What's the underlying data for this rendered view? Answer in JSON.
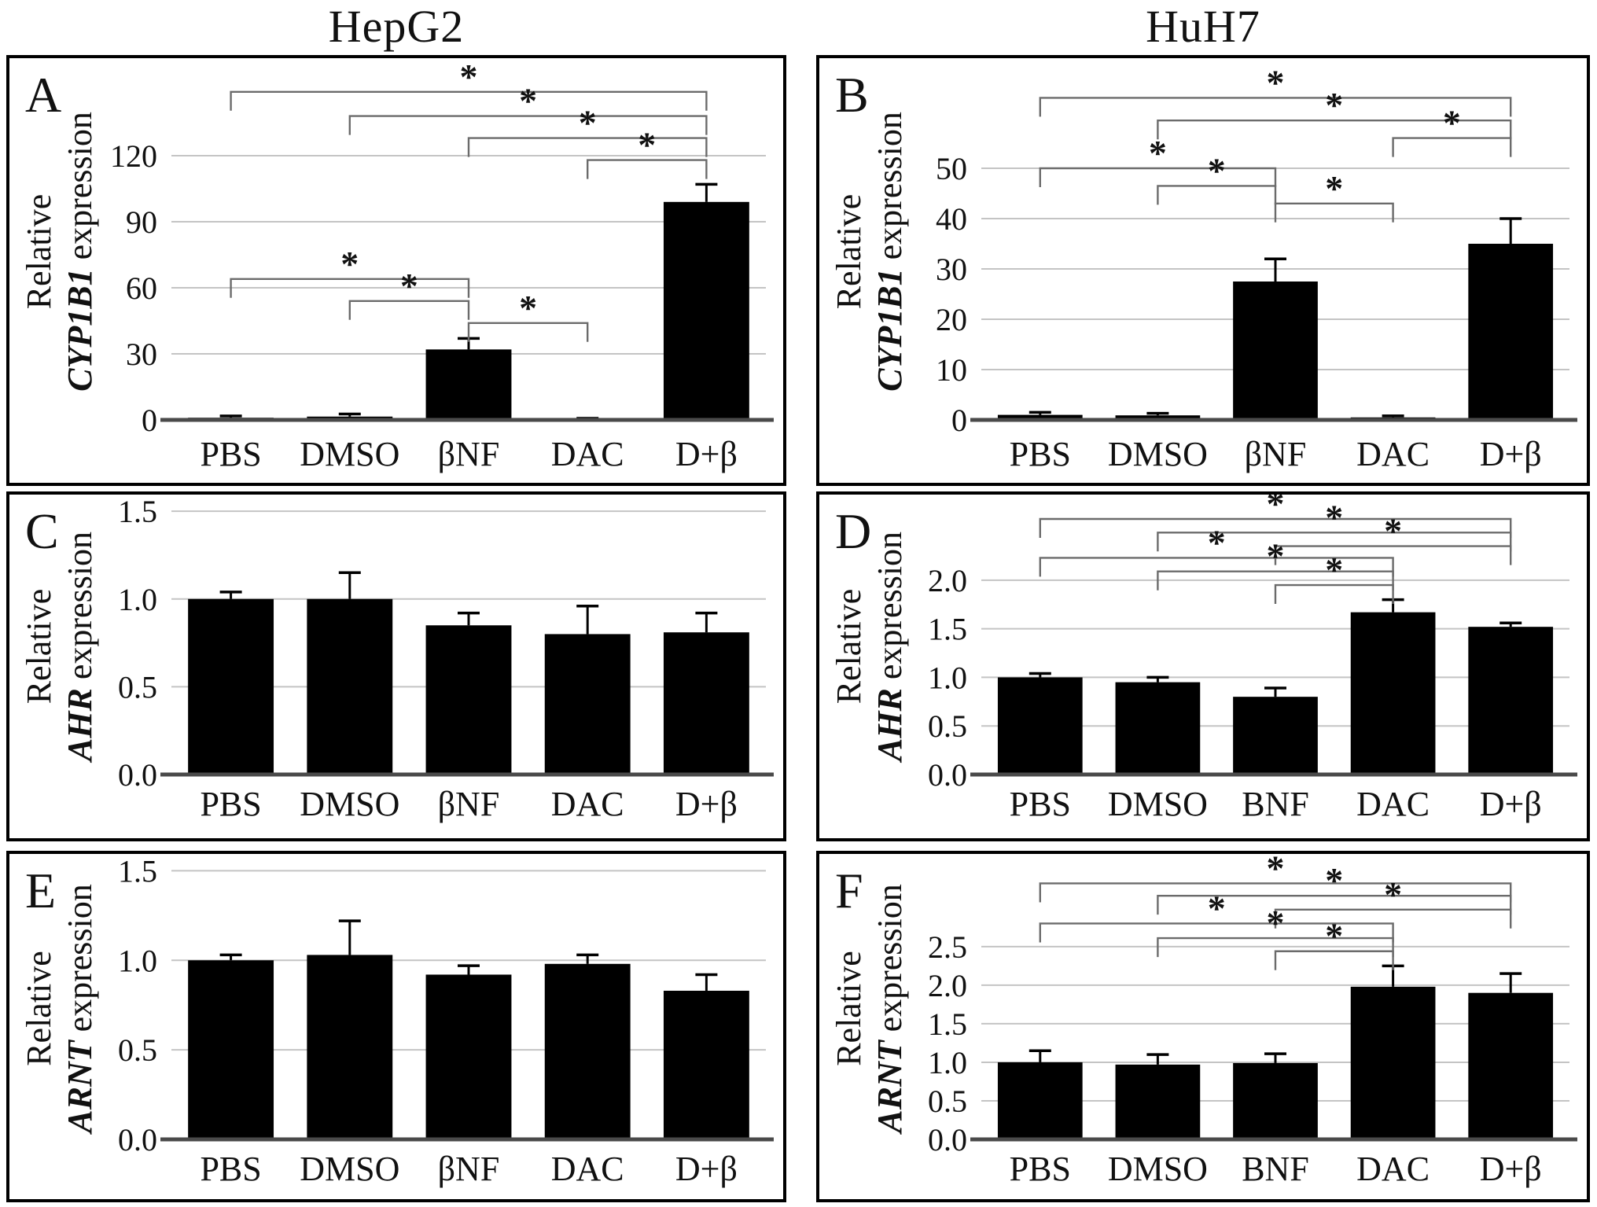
{
  "figure": {
    "column_titles": [
      "HepG2",
      "HuH7"
    ],
    "significance_symbol": "*"
  },
  "colors": {
    "bar": "#000000",
    "grid": "#c4c4c4",
    "baseline": "#4a4a4a",
    "bracket": "#6b6b6b",
    "text": "#111111",
    "border": "#000000",
    "background": "#ffffff"
  },
  "chart_data": [
    {
      "panel": "A",
      "type": "bar",
      "cell_line": "HepG2",
      "ylabel": {
        "line1": "Relative",
        "gene": "CYP1B1",
        "rest": "expression"
      },
      "categories": [
        "PBS",
        "DMSO",
        "βNF",
        "DAC",
        "D+β"
      ],
      "values": [
        1.0,
        1.5,
        32,
        0.4,
        99
      ],
      "errors": [
        0.8,
        1.2,
        5,
        0.3,
        8
      ],
      "tick_values": [
        0,
        30,
        60,
        90,
        120
      ],
      "tick_labels": [
        "0",
        "30",
        "60",
        "90",
        "120"
      ],
      "ylim": [
        0,
        160
      ],
      "grid": true,
      "brackets": [
        {
          "a": 0,
          "b": 4,
          "y": 149,
          "label": "*"
        },
        {
          "a": 1,
          "b": 4,
          "y": 138,
          "label": "*"
        },
        {
          "a": 2,
          "b": 4,
          "y": 128,
          "label": "*"
        },
        {
          "a": 3,
          "b": 4,
          "y": 118,
          "label": "*"
        },
        {
          "a": 0,
          "b": 2,
          "y": 64,
          "label": "*"
        },
        {
          "a": 1,
          "b": 2,
          "y": 54,
          "label": "*"
        },
        {
          "a": 2,
          "b": 3,
          "y": 44,
          "label": "*"
        }
      ]
    },
    {
      "panel": "B",
      "type": "bar",
      "cell_line": "HuH7",
      "ylabel": {
        "line1": "Relative",
        "gene": "CYP1B1",
        "rest": "expression"
      },
      "categories": [
        "PBS",
        "DMSO",
        "βNF",
        "DAC",
        "D+β"
      ],
      "values": [
        1.0,
        0.9,
        27.5,
        0.5,
        35
      ],
      "errors": [
        0.5,
        0.4,
        4.5,
        0.3,
        5
      ],
      "tick_values": [
        0,
        10,
        20,
        30,
        40,
        50
      ],
      "tick_labels": [
        "0",
        "10",
        "20",
        "30",
        "40",
        "50"
      ],
      "ylim": [
        0,
        70
      ],
      "grid": true,
      "brackets": [
        {
          "a": 0,
          "b": 4,
          "y": 64,
          "label": "*"
        },
        {
          "a": 1,
          "b": 4,
          "y": 59.5,
          "label": "*"
        },
        {
          "a": 3,
          "b": 4,
          "y": 56,
          "label": "*"
        },
        {
          "a": 0,
          "b": 2,
          "y": 50,
          "label": "*"
        },
        {
          "a": 1,
          "b": 2,
          "y": 46.5,
          "label": "*"
        },
        {
          "a": 2,
          "b": 3,
          "y": 43,
          "label": "*"
        }
      ]
    },
    {
      "panel": "C",
      "type": "bar",
      "cell_line": "HepG2",
      "ylabel": {
        "line1": "Relative",
        "gene": "AHR",
        "rest": "expression"
      },
      "categories": [
        "PBS",
        "DMSO",
        "βNF",
        "DAC",
        "D+β"
      ],
      "values": [
        1.0,
        1.0,
        0.85,
        0.8,
        0.81
      ],
      "errors": [
        0.04,
        0.15,
        0.07,
        0.16,
        0.11
      ],
      "tick_values": [
        0.0,
        0.5,
        1.0,
        1.5
      ],
      "tick_labels": [
        "0.0",
        "0.5",
        "1.0",
        "1.5"
      ],
      "ylim": [
        0,
        1.55
      ],
      "grid": true,
      "brackets": []
    },
    {
      "panel": "D",
      "type": "bar",
      "cell_line": "HuH7",
      "ylabel": {
        "line1": "Relative",
        "gene": "AHR",
        "rest": "expression"
      },
      "categories": [
        "PBS",
        "DMSO",
        "BNF",
        "DAC",
        "D+β"
      ],
      "values": [
        1.0,
        0.95,
        0.8,
        1.67,
        1.52
      ],
      "errors": [
        0.04,
        0.05,
        0.09,
        0.13,
        0.04
      ],
      "tick_values": [
        0.0,
        0.5,
        1.0,
        1.5,
        2.0
      ],
      "tick_labels": [
        "0.0",
        "0.5",
        "1.0",
        "1.5",
        "2.0"
      ],
      "ylim": [
        0,
        2.8
      ],
      "grid": true,
      "brackets": [
        {
          "a": 0,
          "b": 4,
          "y": 2.63,
          "label": "*"
        },
        {
          "a": 1,
          "b": 4,
          "y": 2.49,
          "label": "*"
        },
        {
          "a": 2,
          "b": 4,
          "y": 2.35,
          "label": "*"
        },
        {
          "a": 0,
          "b": 3,
          "y": 2.23,
          "label": "*"
        },
        {
          "a": 1,
          "b": 3,
          "y": 2.09,
          "label": "*"
        },
        {
          "a": 2,
          "b": 3,
          "y": 1.95,
          "label": "*"
        }
      ]
    },
    {
      "panel": "E",
      "type": "bar",
      "cell_line": "HepG2",
      "ylabel": {
        "line1": "Relative",
        "gene": "ARNT",
        "rest": "expression"
      },
      "categories": [
        "PBS",
        "DMSO",
        "βNF",
        "DAC",
        "D+β"
      ],
      "values": [
        1.0,
        1.03,
        0.92,
        0.98,
        0.83
      ],
      "errors": [
        0.03,
        0.19,
        0.05,
        0.05,
        0.09
      ],
      "tick_values": [
        0.0,
        0.5,
        1.0,
        1.5
      ],
      "tick_labels": [
        "0.0",
        "0.5",
        "1.0",
        "1.5"
      ],
      "ylim": [
        0,
        1.55
      ],
      "grid": true,
      "brackets": []
    },
    {
      "panel": "F",
      "type": "bar",
      "cell_line": "HuH7",
      "ylabel": {
        "line1": "Relative",
        "gene": "ARNT",
        "rest": "expression"
      },
      "categories": [
        "PBS",
        "DMSO",
        "BNF",
        "DAC",
        "D+β"
      ],
      "values": [
        1.0,
        0.97,
        0.99,
        1.98,
        1.9
      ],
      "errors": [
        0.15,
        0.13,
        0.12,
        0.27,
        0.25
      ],
      "tick_values": [
        0.0,
        0.5,
        1.0,
        1.5,
        2.0,
        2.5
      ],
      "tick_labels": [
        "0.0",
        "0.5",
        "1.0",
        "1.5",
        "2.0",
        "2.5"
      ],
      "ylim": [
        0,
        3.6
      ],
      "grid": true,
      "brackets": [
        {
          "a": 0,
          "b": 4,
          "y": 3.32,
          "label": "*"
        },
        {
          "a": 1,
          "b": 4,
          "y": 3.16,
          "label": "*"
        },
        {
          "a": 2,
          "b": 4,
          "y": 2.98,
          "label": "*"
        },
        {
          "a": 0,
          "b": 3,
          "y": 2.8,
          "label": "*"
        },
        {
          "a": 1,
          "b": 3,
          "y": 2.61,
          "label": "*"
        },
        {
          "a": 2,
          "b": 3,
          "y": 2.44,
          "label": "*"
        }
      ]
    }
  ]
}
